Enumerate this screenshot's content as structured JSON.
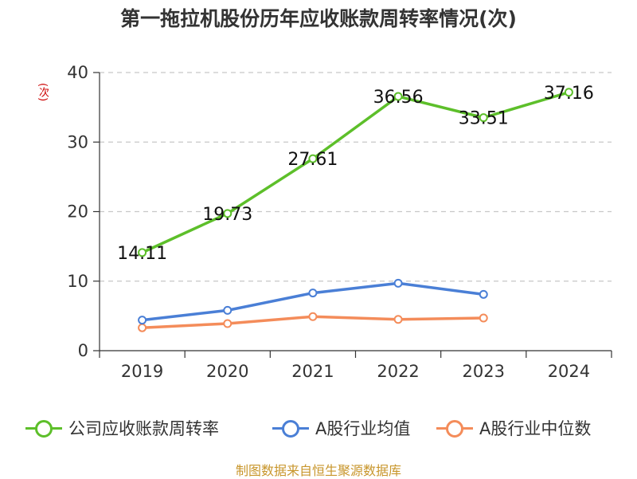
{
  "title": "第一拖拉机股份历年应收账款周转率情况(次)",
  "source": "制图数据来自恒生聚源数据库",
  "chart_data": {
    "type": "line",
    "title": "第一拖拉机股份历年应收账款周转率情况(次)",
    "y_unit": "(次)",
    "categories": [
      "2019",
      "2020",
      "2021",
      "2022",
      "2023",
      "2024"
    ],
    "ylim": [
      0,
      40
    ],
    "yticks": [
      0,
      10,
      20,
      30,
      40
    ],
    "grid": true,
    "legend_position": "bottom",
    "series": [
      {
        "name": "公司应收账款周转率",
        "color": "#5dbf2a",
        "values": [
          14.11,
          19.73,
          27.61,
          36.56,
          33.51,
          37.16
        ],
        "data_labels": [
          "14.11",
          "19.73",
          "27.61",
          "36.56",
          "33.51",
          "37.16"
        ]
      },
      {
        "name": "A股行业均值",
        "color": "#4a7fd6",
        "values": [
          4.4,
          5.8,
          8.3,
          9.7,
          8.1,
          null
        ]
      },
      {
        "name": "A股行业中位数",
        "color": "#f48c5a",
        "values": [
          3.3,
          3.9,
          4.9,
          4.5,
          4.7,
          null
        ]
      }
    ]
  }
}
